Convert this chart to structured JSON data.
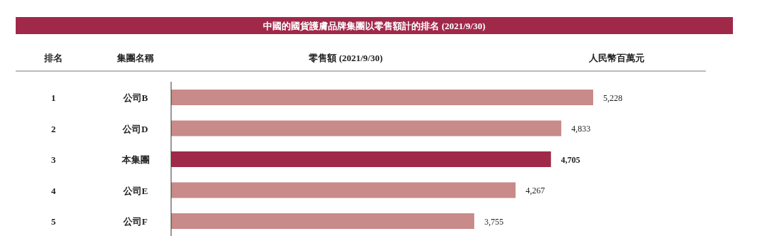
{
  "chart_data": {
    "type": "bar",
    "orientation": "horizontal",
    "title": "中國的國貨護膚品牌集團以零售額計的排名 (2021/9/30)",
    "xlabel": "零售額 (2021/9/30)",
    "ylabel": "集團名稱",
    "categories": [
      "公司B",
      "公司D",
      "本集團",
      "公司E",
      "公司F"
    ],
    "values": [
      5228,
      4833,
      4705,
      4267,
      3755
    ],
    "value_labels": [
      "5,228",
      "4,833",
      "4,705",
      "4,267",
      "3,755"
    ],
    "colors": [
      "#c98a8a",
      "#c98a8a",
      "#a0294a",
      "#c98a8a",
      "#c98a8a"
    ],
    "annotations": [
      "排名",
      "人民幣百萬元",
      "1",
      "2",
      "3",
      "4",
      "5"
    ]
  }
}
